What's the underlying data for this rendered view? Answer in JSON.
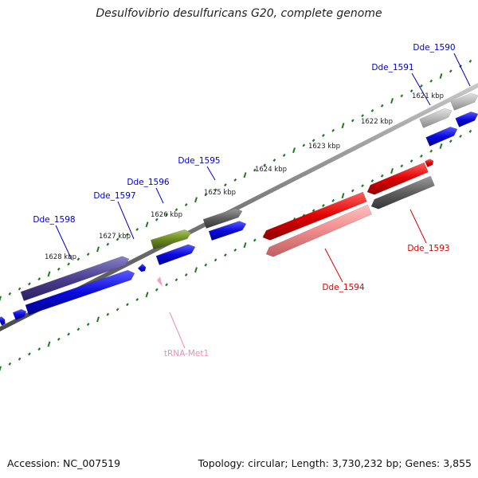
{
  "title": "Desulfovibrio desulfuricans G20, complete genome",
  "footer": {
    "accession": "Accession: NC_007519",
    "summary": "Topology: circular; Length: 3,730,232 bp; Genes: 3,855"
  },
  "colors": {
    "backbone": "#8f8f8f",
    "tick": "#1f7a1f",
    "blue": "#0a0adf",
    "red": "#e00000",
    "pink": "#f08a8a",
    "dark_grey": "#5f5f5f",
    "light_grey": "#b7b7b7",
    "purple": "#4b3f8f",
    "olive": "#6b8a1f",
    "trna": "#f2a0c8",
    "label_blue": "#0000cc",
    "label_red": "#dd0000",
    "label_pink": "#f08ab8"
  },
  "scale_labels": [
    "1621 kbp",
    "1622 kbp",
    "1623 kbp",
    "1624 kbp",
    "1625 kbp",
    "1626 kbp",
    "1627 kbp",
    "1628 kbp"
  ],
  "gene_labels": [
    "Dde_1590",
    "Dde_1591",
    "Dde_1593",
    "Dde_1594",
    "Dde_1595",
    "Dde_1596",
    "Dde_1597",
    "Dde_1598",
    "tRNA-Met1"
  ]
}
